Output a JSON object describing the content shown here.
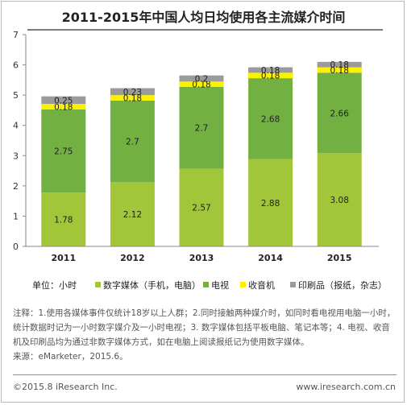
{
  "title": "2011-2015年中国人均日均使用各主流媒介时间",
  "colors": {
    "digital": "#a2c63a",
    "tv": "#72b042",
    "radio": "#fbf200",
    "print": "#9b9b9b",
    "axis": "#8a8a8a"
  },
  "chart_data": {
    "type": "bar",
    "stacked": true,
    "categories": [
      "2011",
      "2012",
      "2013",
      "2014",
      "2015"
    ],
    "series": [
      {
        "name": "数字媒体（手机，电脑）",
        "color_key": "digital",
        "values": [
          1.78,
          2.12,
          2.57,
          2.88,
          3.08
        ]
      },
      {
        "name": "电视",
        "color_key": "tv",
        "values": [
          2.75,
          2.7,
          2.7,
          2.68,
          2.66
        ]
      },
      {
        "name": "收音机",
        "color_key": "radio",
        "values": [
          0.18,
          0.18,
          0.18,
          0.18,
          0.18
        ]
      },
      {
        "name": "印刷品（报纸，杂志）",
        "color_key": "print",
        "values": [
          0.25,
          0.23,
          0.2,
          0.18,
          0.18
        ]
      }
    ],
    "data_labels": [
      [
        "1.78",
        "2.12",
        "2.57",
        "2.88",
        "3.08"
      ],
      [
        "2.75",
        "2.7",
        "2.7",
        "2.68",
        "2.66"
      ],
      [
        "0.18",
        "0.18",
        "0.18",
        "0.18",
        "0.18"
      ],
      [
        "0.25",
        "0.23",
        "0.2",
        "0.18",
        "0.18"
      ]
    ],
    "ylim": [
      0,
      7
    ],
    "yticks": [
      "0",
      "1",
      "2",
      "3",
      "4",
      "5",
      "6",
      "7"
    ],
    "grid": false,
    "legend_position": "bottom"
  },
  "legend": {
    "unit": "单位：小时",
    "items": [
      "数字媒体（手机，电脑）",
      "电视",
      "收音机",
      "印刷品（报纸，杂志）"
    ]
  },
  "note": "注释：1.使用各媒体事件仅统计18岁以上人群；2.同时接触两种媒介时，如同时看电视用电脑一小时，统计数据时记为一小时数字媒介及一小时电视；3. 数字媒体包括平板电脑、笔记本等；4. 电视、收音机及印刷品均为通过非数字媒体方式，如在电脑上阅读报纸记为使用数字媒体。",
  "source": "来源：eMarketer，2015.6。",
  "footer": {
    "copyright": "©2015.8 iResearch Inc.",
    "site": "www.iresearch.com.cn"
  }
}
